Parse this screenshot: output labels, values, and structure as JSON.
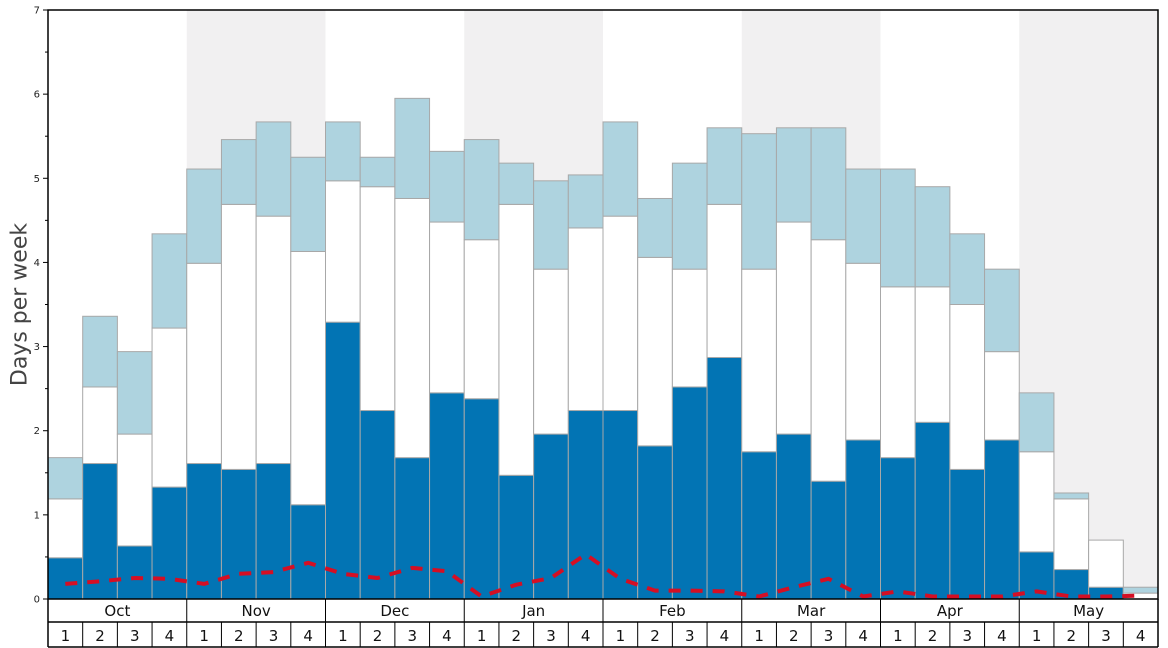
{
  "chart_data": {
    "type": "bar",
    "stacked": true,
    "title": "",
    "xlabel": "",
    "ylabel": "Days per week",
    "ylim": [
      0,
      7
    ],
    "yticks": [
      0,
      1,
      2,
      3,
      4,
      5,
      6,
      7
    ],
    "grid": false,
    "months": [
      {
        "name": "Oct",
        "weeks": [
          "1",
          "2",
          "3",
          "4"
        ]
      },
      {
        "name": "Nov",
        "weeks": [
          "1",
          "2",
          "3",
          "4"
        ]
      },
      {
        "name": "Dec",
        "weeks": [
          "1",
          "2",
          "3",
          "4"
        ]
      },
      {
        "name": "Jan",
        "weeks": [
          "1",
          "2",
          "3",
          "4"
        ]
      },
      {
        "name": "Feb",
        "weeks": [
          "1",
          "2",
          "3",
          "4"
        ]
      },
      {
        "name": "Mar",
        "weeks": [
          "1",
          "2",
          "3",
          "4"
        ]
      },
      {
        "name": "Apr",
        "weeks": [
          "1",
          "2",
          "3",
          "4"
        ]
      },
      {
        "name": "May",
        "weeks": [
          "1",
          "2",
          "3",
          "4"
        ]
      }
    ],
    "series": [
      {
        "color": "#0274b4",
        "values": [
          0.49,
          1.61,
          0.63,
          1.33,
          1.61,
          1.54,
          1.61,
          1.12,
          3.29,
          2.24,
          1.68,
          2.45,
          2.38,
          1.47,
          1.96,
          2.24,
          2.24,
          1.82,
          2.52,
          2.87,
          1.75,
          1.96,
          1.4,
          1.89,
          1.68,
          2.1,
          1.54,
          1.89,
          0.56,
          0.35,
          0.14,
          0.0
        ]
      },
      {
        "color": "#ffffff",
        "values": [
          0.7,
          0.91,
          1.33,
          1.89,
          2.38,
          3.15,
          2.94,
          3.01,
          1.68,
          2.66,
          3.08,
          2.03,
          1.89,
          3.22,
          1.96,
          2.17,
          2.31,
          2.24,
          1.4,
          1.82,
          2.17,
          2.52,
          2.87,
          2.1,
          2.03,
          1.61,
          1.96,
          1.05,
          1.19,
          0.84,
          0.56,
          0.07
        ]
      },
      {
        "color": "#aed3df",
        "values": [
          0.49,
          0.84,
          0.98,
          1.12,
          1.12,
          0.77,
          1.12,
          1.12,
          0.7,
          0.35,
          1.19,
          0.84,
          1.19,
          0.49,
          1.05,
          0.63,
          1.12,
          0.7,
          1.26,
          0.91,
          1.61,
          1.12,
          1.33,
          1.12,
          1.4,
          1.19,
          0.84,
          0.98,
          0.7,
          0.07,
          0.0,
          0.07
        ]
      }
    ],
    "line": {
      "color": "#d40f24",
      "style": "dashed",
      "values": [
        0.18,
        0.21,
        0.25,
        0.24,
        0.18,
        0.3,
        0.32,
        0.43,
        0.3,
        0.25,
        0.37,
        0.33,
        0.03,
        0.17,
        0.25,
        0.53,
        0.24,
        0.1,
        0.1,
        0.09,
        0.03,
        0.14,
        0.24,
        0.03,
        0.09,
        0.03,
        0.03,
        0.03,
        0.09,
        0.03,
        0.03,
        0.04
      ]
    },
    "colors": {
      "shade": "#f1f0f1",
      "bar_stroke": "#a8a8a8",
      "axis": "#000000"
    }
  }
}
